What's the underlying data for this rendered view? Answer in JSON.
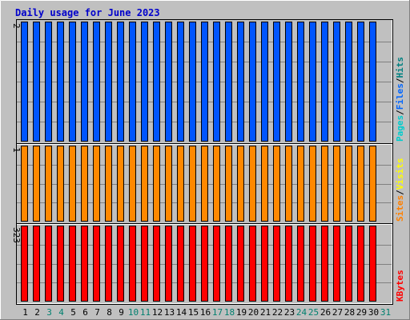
{
  "chart_data": {
    "type": "bar",
    "title": "Daily usage for June 2023",
    "days": [
      "1",
      "2",
      "3",
      "4",
      "5",
      "6",
      "7",
      "8",
      "9",
      "10",
      "11",
      "12",
      "13",
      "14",
      "15",
      "16",
      "17",
      "18",
      "19",
      "20",
      "21",
      "22",
      "23",
      "24",
      "25",
      "26",
      "27",
      "28",
      "29",
      "30",
      "31"
    ],
    "weekend_days": [
      "3",
      "4",
      "10",
      "11",
      "17",
      "18",
      "24",
      "25",
      "31"
    ],
    "panels": [
      {
        "id": "hits",
        "max_label": "2",
        "ylim": [
          0,
          2
        ],
        "side_labels": [
          {
            "text": "Pages",
            "color": "#00cccc"
          },
          {
            "text": "/",
            "color": "#000000"
          },
          {
            "text": "Files",
            "color": "#0066ff"
          },
          {
            "text": "/",
            "color": "#000000"
          },
          {
            "text": "Hits",
            "color": "#008080"
          }
        ],
        "series": [
          {
            "color": "#0055ff",
            "values": [
              2,
              2,
              2,
              2,
              2,
              2,
              2,
              2,
              2,
              2,
              2,
              2,
              2,
              2,
              2,
              2,
              2,
              2,
              2,
              2,
              2,
              2,
              2,
              2,
              2,
              2,
              2,
              2,
              2,
              2
            ]
          }
        ]
      },
      {
        "id": "visits",
        "max_label": "1",
        "ylim": [
          0,
          1
        ],
        "side_labels": [
          {
            "text": "Sites",
            "color": "#ff8000"
          },
          {
            "text": "/",
            "color": "#000000"
          },
          {
            "text": "Visits",
            "color": "#ffff00"
          }
        ],
        "series": [
          {
            "color": "#ff8800",
            "values": [
              1,
              1,
              1,
              1,
              1,
              1,
              1,
              1,
              1,
              1,
              1,
              1,
              1,
              1,
              1,
              1,
              1,
              1,
              1,
              1,
              1,
              1,
              1,
              1,
              1,
              1,
              1,
              1,
              1,
              1
            ]
          }
        ]
      },
      {
        "id": "kbytes",
        "max_label": "323",
        "ylim": [
          0,
          323
        ],
        "side_labels": [
          {
            "text": "KBytes",
            "color": "#ff0000"
          }
        ],
        "series": [
          {
            "color": "#ff0000",
            "values": [
              323,
              323,
              323,
              323,
              323,
              323,
              323,
              323,
              323,
              323,
              323,
              323,
              323,
              323,
              323,
              323,
              323,
              323,
              323,
              323,
              323,
              323,
              323,
              323,
              323,
              323,
              323,
              323,
              323,
              323
            ]
          }
        ]
      }
    ]
  },
  "colors": {
    "background": "#c0c0c0",
    "title": "#0000cc",
    "weekday_label": "#000000",
    "weekend_label": "#00806f",
    "grid": "#808080"
  }
}
